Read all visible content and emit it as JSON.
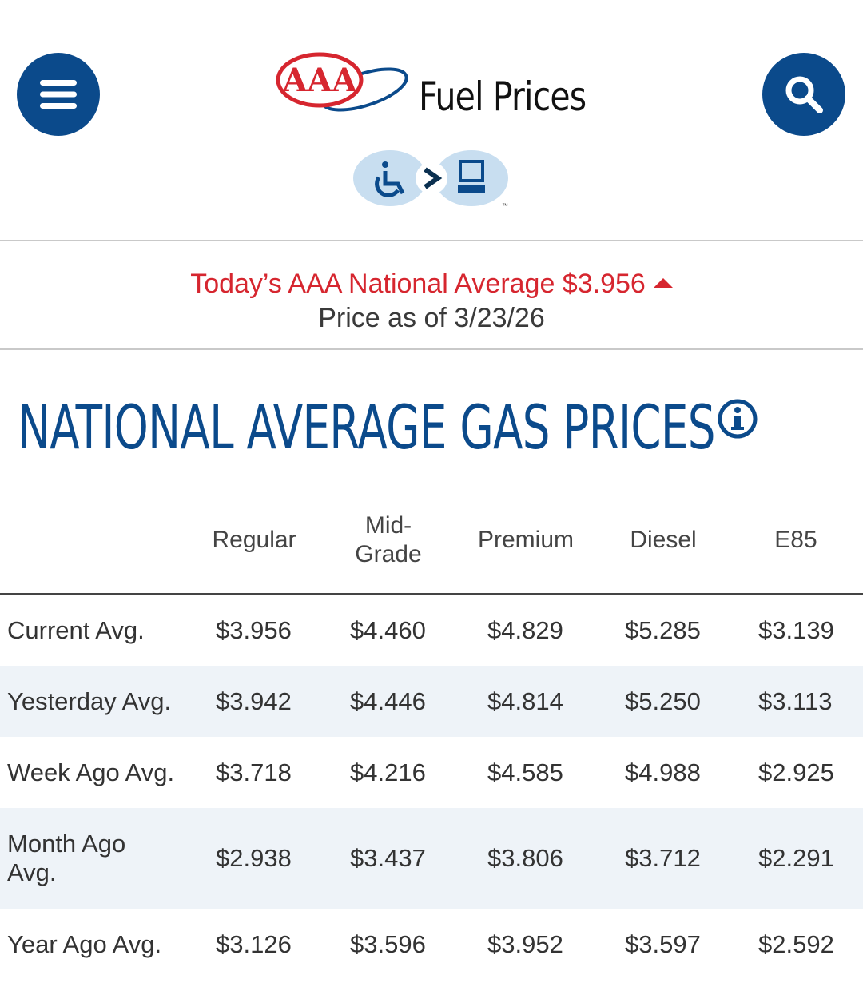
{
  "header": {
    "title": "Fuel Prices",
    "logo_text": "AAA",
    "menu_icon": "hamburger-menu-icon",
    "search_icon": "search-icon",
    "accessibility": {
      "icons": [
        "wheelchair-icon",
        "arrow-icon",
        "computer-icon"
      ],
      "tm": "™"
    }
  },
  "notice": {
    "today_text": "Today’s AAA National Average $3.956",
    "as_of_text": "Price as of 3/23/26",
    "trend_icon": "up-triangle-icon"
  },
  "section": {
    "title": "NATIONAL AVERAGE GAS PRICES",
    "info_icon": "info-icon"
  },
  "table": {
    "columns": [
      "Regular",
      "Mid-",
      "Grade",
      "Premium",
      "Diesel",
      "E85"
    ],
    "rows": [
      {
        "label": "Current Avg.",
        "values": [
          "$3.956",
          "$4.460",
          "$4.829",
          "$5.285",
          "$3.139"
        ]
      },
      {
        "label": "Yesterday Avg.",
        "values": [
          "$3.942",
          "$4.446",
          "$4.814",
          "$5.250",
          "$3.113"
        ]
      },
      {
        "label": "Week Ago Avg.",
        "values": [
          "$3.718",
          "$4.216",
          "$4.585",
          "$4.988",
          "$2.925"
        ]
      },
      {
        "label": "Month Ago",
        "label2": "Avg.",
        "values": [
          "$2.938",
          "$3.437",
          "$3.806",
          "$3.712",
          "$2.291"
        ]
      },
      {
        "label": "Year Ago Avg.",
        "values": [
          "$3.126",
          "$3.596",
          "$3.952",
          "$3.597",
          "$2.592"
        ]
      }
    ]
  },
  "colors": {
    "brand_blue": "#0b4a8b",
    "alert_red": "#d6262f",
    "row_alt": "#eef3f8"
  }
}
